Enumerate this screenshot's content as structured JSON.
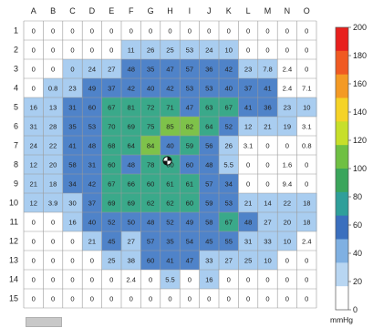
{
  "chart_data": {
    "type": "heatmap",
    "title": "",
    "columns": [
      "A",
      "B",
      "C",
      "D",
      "E",
      "F",
      "G",
      "H",
      "I",
      "J",
      "K",
      "L",
      "M",
      "N",
      "O"
    ],
    "rows": [
      "1",
      "2",
      "3",
      "4",
      "5",
      "6",
      "7",
      "8",
      "9",
      "10",
      "11",
      "12",
      "13",
      "14",
      "15"
    ],
    "values": [
      [
        "0",
        "0",
        "0",
        "0",
        "0",
        "0",
        "0",
        "0",
        "0",
        "0",
        "0",
        "0",
        "0",
        "0",
        "0"
      ],
      [
        "0",
        "0",
        "0",
        "0",
        "0",
        "11",
        "26",
        "25",
        "53",
        "24",
        "10",
        "0",
        "0",
        "0",
        "0"
      ],
      [
        "0",
        "0",
        "0",
        "24",
        "27",
        "48",
        "35",
        "47",
        "57",
        "36",
        "42",
        "23",
        "7.8",
        "2.4",
        "0"
      ],
      [
        "0",
        "0.8",
        "23",
        "49",
        "37",
        "42",
        "40",
        "42",
        "53",
        "53",
        "40",
        "37",
        "41",
        "2.4",
        "7.1"
      ],
      [
        "16",
        "13",
        "31",
        "60",
        "67",
        "81",
        "72",
        "71",
        "47",
        "63",
        "67",
        "41",
        "36",
        "23",
        "10"
      ],
      [
        "31",
        "28",
        "35",
        "53",
        "70",
        "69",
        "75",
        "85",
        "82",
        "64",
        "52",
        "12",
        "21",
        "19",
        "3.1"
      ],
      [
        "24",
        "22",
        "41",
        "48",
        "68",
        "64",
        "84",
        "40",
        "59",
        "56",
        "26",
        "3.1",
        "0",
        "0",
        "0.8"
      ],
      [
        "12",
        "20",
        "58",
        "31",
        "60",
        "48",
        "78",
        "60",
        "60",
        "48",
        "5.5",
        "0",
        "0",
        "1.6",
        "0"
      ],
      [
        "21",
        "18",
        "34",
        "42",
        "67",
        "66",
        "60",
        "61",
        "61",
        "57",
        "34",
        "0",
        "0",
        "9.4",
        "0"
      ],
      [
        "12",
        "3.9",
        "30",
        "37",
        "69",
        "69",
        "62",
        "62",
        "60",
        "59",
        "53",
        "21",
        "14",
        "22",
        "18"
      ],
      [
        "0",
        "0",
        "16",
        "40",
        "52",
        "50",
        "48",
        "52",
        "49",
        "58",
        "67",
        "48",
        "27",
        "20",
        "18"
      ],
      [
        "0",
        "0",
        "0",
        "21",
        "45",
        "27",
        "57",
        "35",
        "54",
        "45",
        "55",
        "31",
        "33",
        "10",
        "2.4"
      ],
      [
        "0",
        "0",
        "0",
        "0",
        "25",
        "38",
        "60",
        "41",
        "47",
        "33",
        "27",
        "25",
        "10",
        "0",
        "0"
      ],
      [
        "0",
        "0",
        "0",
        "0",
        "0",
        "2.4",
        "0",
        "5.5",
        "0",
        "16",
        "0",
        "0",
        "0",
        "0",
        "0"
      ],
      [
        "0",
        "0",
        "0",
        "0",
        "0",
        "0",
        "0",
        "0",
        "0",
        "0",
        "0",
        "0",
        "0",
        "0",
        "0"
      ]
    ],
    "contour_levels": [
      [
        0,
        0,
        0,
        0,
        0,
        0,
        0,
        0,
        0,
        0,
        0,
        0,
        0,
        0,
        0
      ],
      [
        0,
        0,
        0,
        0,
        0,
        1,
        1,
        1,
        1,
        1,
        1,
        0,
        0,
        0,
        0
      ],
      [
        0,
        0,
        1,
        1,
        1,
        2,
        2,
        2,
        2,
        2,
        2,
        1,
        1,
        0,
        0
      ],
      [
        0,
        1,
        1,
        2,
        2,
        2,
        2,
        2,
        2,
        2,
        2,
        2,
        2,
        0,
        0
      ],
      [
        1,
        1,
        2,
        2,
        3,
        3,
        3,
        3,
        2,
        3,
        3,
        2,
        2,
        1,
        1
      ],
      [
        1,
        1,
        2,
        2,
        3,
        3,
        3,
        4,
        4,
        3,
        2,
        1,
        1,
        1,
        0
      ],
      [
        1,
        1,
        2,
        2,
        3,
        3,
        4,
        2,
        3,
        2,
        1,
        0,
        0,
        0,
        0
      ],
      [
        1,
        1,
        2,
        2,
        3,
        2,
        3,
        3,
        2,
        2,
        1,
        0,
        0,
        0,
        0
      ],
      [
        1,
        1,
        2,
        2,
        3,
        3,
        3,
        3,
        3,
        2,
        2,
        0,
        0,
        0,
        0
      ],
      [
        1,
        1,
        1,
        2,
        3,
        3,
        3,
        3,
        3,
        2,
        2,
        1,
        1,
        1,
        1
      ],
      [
        0,
        0,
        1,
        2,
        2,
        2,
        2,
        2,
        2,
        2,
        3,
        2,
        1,
        1,
        1
      ],
      [
        0,
        0,
        0,
        1,
        2,
        1,
        2,
        2,
        2,
        2,
        2,
        1,
        1,
        1,
        0
      ],
      [
        0,
        0,
        0,
        0,
        1,
        1,
        2,
        2,
        2,
        1,
        1,
        1,
        1,
        0,
        0
      ],
      [
        0,
        0,
        0,
        0,
        0,
        0,
        0,
        1,
        0,
        1,
        0,
        0,
        0,
        0,
        0
      ],
      [
        0,
        0,
        0,
        0,
        0,
        0,
        0,
        0,
        0,
        0,
        0,
        0,
        0,
        0,
        0
      ]
    ],
    "level_colors": [
      "#ffffff",
      "#a9cdf0",
      "#4f83c9",
      "#3aa98a",
      "#7ec24a"
    ],
    "marker": {
      "row": 8,
      "col": "H"
    },
    "colorbar": {
      "ticks": [
        "200",
        "180",
        "160",
        "140",
        "120",
        "100",
        "80",
        "60",
        "40",
        "20",
        "0"
      ],
      "unit": "mmHg",
      "colors": [
        "#e8201d",
        "#f05a22",
        "#f49a24",
        "#f5d327",
        "#c7df2a",
        "#6fc043",
        "#3aa55b",
        "#2f9f9a",
        "#3a6fbe",
        "#7fb0e2",
        "#b8d6f2",
        "#ffffff"
      ]
    }
  }
}
